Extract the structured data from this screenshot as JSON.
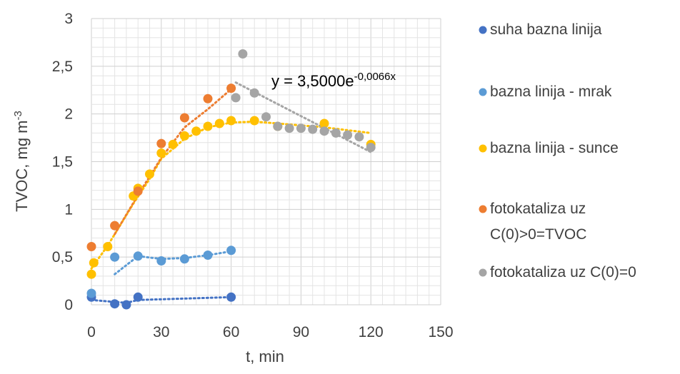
{
  "chart_data": {
    "type": "scatter",
    "title": "",
    "xlabel": "t, min",
    "ylabel": "TVOC, mg m",
    "ylabel_sup": "-3",
    "xlim": [
      0,
      150
    ],
    "ylim": [
      0,
      3
    ],
    "x_ticks": [
      0,
      30,
      60,
      90,
      120,
      150
    ],
    "y_ticks": [
      {
        "value": 0,
        "label": "0"
      },
      {
        "value": 0.5,
        "label": "0,5"
      },
      {
        "value": 1,
        "label": "1"
      },
      {
        "value": 1.5,
        "label": "1,5"
      },
      {
        "value": 2,
        "label": "2"
      },
      {
        "value": 2.5,
        "label": "2,5"
      },
      {
        "value": 3,
        "label": "3"
      }
    ],
    "grid": true,
    "legend_position": "right",
    "annotation": {
      "main": "y = 3,5000e",
      "superscript": "-0,0066x"
    },
    "series": [
      {
        "name": "suha bazna linija",
        "color": "#4472C4",
        "points": [
          [
            0,
            0.08
          ],
          [
            10,
            0.01
          ],
          [
            15,
            0.0
          ],
          [
            20,
            0.08
          ],
          [
            60,
            0.08
          ]
        ],
        "trend": [
          [
            0,
            0.05
          ],
          [
            10,
            0.03
          ],
          [
            15,
            0.02
          ],
          [
            20,
            0.05
          ],
          [
            60,
            0.08
          ]
        ]
      },
      {
        "name": "bazna linija - mrak",
        "color": "#5B9BD5",
        "points": [
          [
            0,
            0.12
          ],
          [
            10,
            0.5
          ],
          [
            20,
            0.51
          ],
          [
            30,
            0.46
          ],
          [
            40,
            0.48
          ],
          [
            50,
            0.52
          ],
          [
            60,
            0.57
          ]
        ],
        "trend": [
          [
            10,
            0.32
          ],
          [
            20,
            0.51
          ],
          [
            30,
            0.48
          ],
          [
            40,
            0.49
          ],
          [
            50,
            0.52
          ],
          [
            60,
            0.56
          ]
        ]
      },
      {
        "name": "bazna linija - sunce",
        "color": "#FFC000",
        "points": [
          [
            0,
            0.32
          ],
          [
            1,
            0.44
          ],
          [
            7,
            0.61
          ],
          [
            18,
            1.14
          ],
          [
            20,
            1.22
          ],
          [
            25,
            1.37
          ],
          [
            30,
            1.59
          ],
          [
            35,
            1.68
          ],
          [
            40,
            1.77
          ],
          [
            45,
            1.82
          ],
          [
            50,
            1.87
          ],
          [
            55,
            1.9
          ],
          [
            60,
            1.93
          ],
          [
            70,
            1.93
          ],
          [
            80,
            1.87
          ],
          [
            100,
            1.9
          ],
          [
            120,
            1.68
          ]
        ],
        "trend": [
          [
            0,
            0.38
          ],
          [
            7,
            0.62
          ],
          [
            18,
            1.06
          ],
          [
            25,
            1.32
          ],
          [
            30,
            1.53
          ],
          [
            40,
            1.74
          ],
          [
            50,
            1.86
          ],
          [
            60,
            1.91
          ],
          [
            70,
            1.92
          ],
          [
            80,
            1.9
          ],
          [
            90,
            1.88
          ],
          [
            100,
            1.86
          ],
          [
            120,
            1.8
          ]
        ]
      },
      {
        "name": "fotokataliza uz C(0)>0=TVOC",
        "color": "#ED7D31",
        "points": [
          [
            0,
            0.61
          ],
          [
            10,
            0.83
          ],
          [
            20,
            1.19
          ],
          [
            30,
            1.69
          ],
          [
            40,
            1.96
          ],
          [
            50,
            2.16
          ],
          [
            60,
            2.27
          ]
        ],
        "trend": [
          [
            10,
            0.74
          ],
          [
            20,
            1.15
          ],
          [
            30,
            1.54
          ],
          [
            40,
            1.86
          ],
          [
            50,
            2.05
          ],
          [
            60,
            2.26
          ]
        ]
      },
      {
        "name": "fotokataliza uz C(0)=0",
        "color": "#A5A5A5",
        "points": [
          [
            62,
            2.17
          ],
          [
            65,
            2.63
          ],
          [
            70,
            2.22
          ],
          [
            75,
            1.97
          ],
          [
            80,
            1.87
          ],
          [
            85,
            1.85
          ],
          [
            90,
            1.85
          ],
          [
            95,
            1.84
          ],
          [
            100,
            1.82
          ],
          [
            105,
            1.8
          ],
          [
            110,
            1.78
          ],
          [
            115,
            1.76
          ],
          [
            120,
            1.65
          ]
        ],
        "trend": [
          [
            62,
            2.33
          ],
          [
            120,
            1.6
          ]
        ]
      }
    ]
  }
}
